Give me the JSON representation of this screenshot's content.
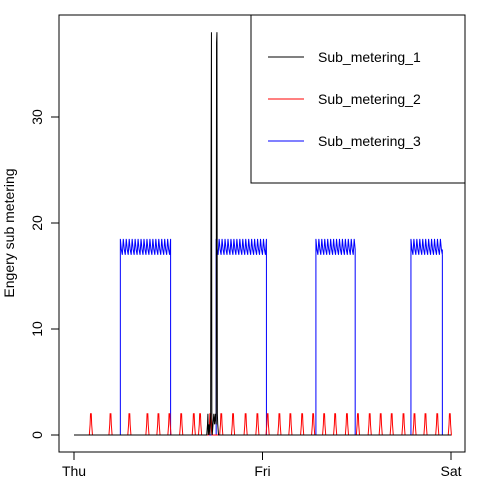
{
  "chart_data": {
    "type": "line",
    "title": "",
    "xlabel": "",
    "ylabel": "Engery sub metering",
    "x_domain": [
      "Thu 00:00",
      "Sat 00:00"
    ],
    "x_ticks": [
      {
        "label": "Thu",
        "hour": 0
      },
      {
        "label": "Fri",
        "hour": 24
      },
      {
        "label": "Sat",
        "hour": 48
      }
    ],
    "ylim": [
      -1,
      39
    ],
    "y_ticks": [
      0,
      10,
      20,
      30
    ],
    "legend": {
      "position": "top-right",
      "box": true
    },
    "grid": false,
    "series": [
      {
        "name": "Sub_metering_1",
        "color": "#000000",
        "unit_hours": true,
        "points": [
          [
            0,
            0
          ],
          [
            16.9,
            0
          ],
          [
            17.0,
            1
          ],
          [
            17.05,
            2
          ],
          [
            17.1,
            0
          ],
          [
            17.2,
            1
          ],
          [
            17.3,
            0
          ],
          [
            17.4,
            2
          ],
          [
            17.45,
            26
          ],
          [
            17.5,
            38
          ],
          [
            17.55,
            2
          ],
          [
            17.6,
            0
          ],
          [
            17.7,
            1
          ],
          [
            17.8,
            2
          ],
          [
            17.9,
            1
          ],
          [
            18.0,
            2
          ],
          [
            18.1,
            1
          ],
          [
            18.15,
            37
          ],
          [
            18.2,
            38
          ],
          [
            18.25,
            2
          ],
          [
            18.3,
            1
          ],
          [
            18.4,
            0
          ],
          [
            48,
            0
          ]
        ]
      },
      {
        "name": "Sub_metering_2",
        "color": "#ff0000",
        "spikes": [
          2.1,
          4.6,
          7.0,
          9.3,
          10.7,
          12.1,
          13.6,
          15.2,
          16.0,
          17.3,
          18.7,
          20.2,
          21.8,
          23.3,
          24.6,
          26.1,
          27.5,
          29.0,
          30.4,
          31.8,
          33.2,
          34.7,
          36.1,
          37.6,
          39.0,
          40.4,
          41.9,
          43.3,
          44.7,
          46.2,
          47.8
        ],
        "spike_value": 2,
        "base_value": 0
      },
      {
        "name": "Sub_metering_3",
        "color": "#0000ff",
        "blocks": [
          [
            5.9,
            12.3
          ],
          [
            18.1,
            24.5
          ],
          [
            30.8,
            35.8
          ],
          [
            42.9,
            46.9
          ]
        ],
        "block_value": 17.5,
        "base_value": 0
      }
    ]
  }
}
